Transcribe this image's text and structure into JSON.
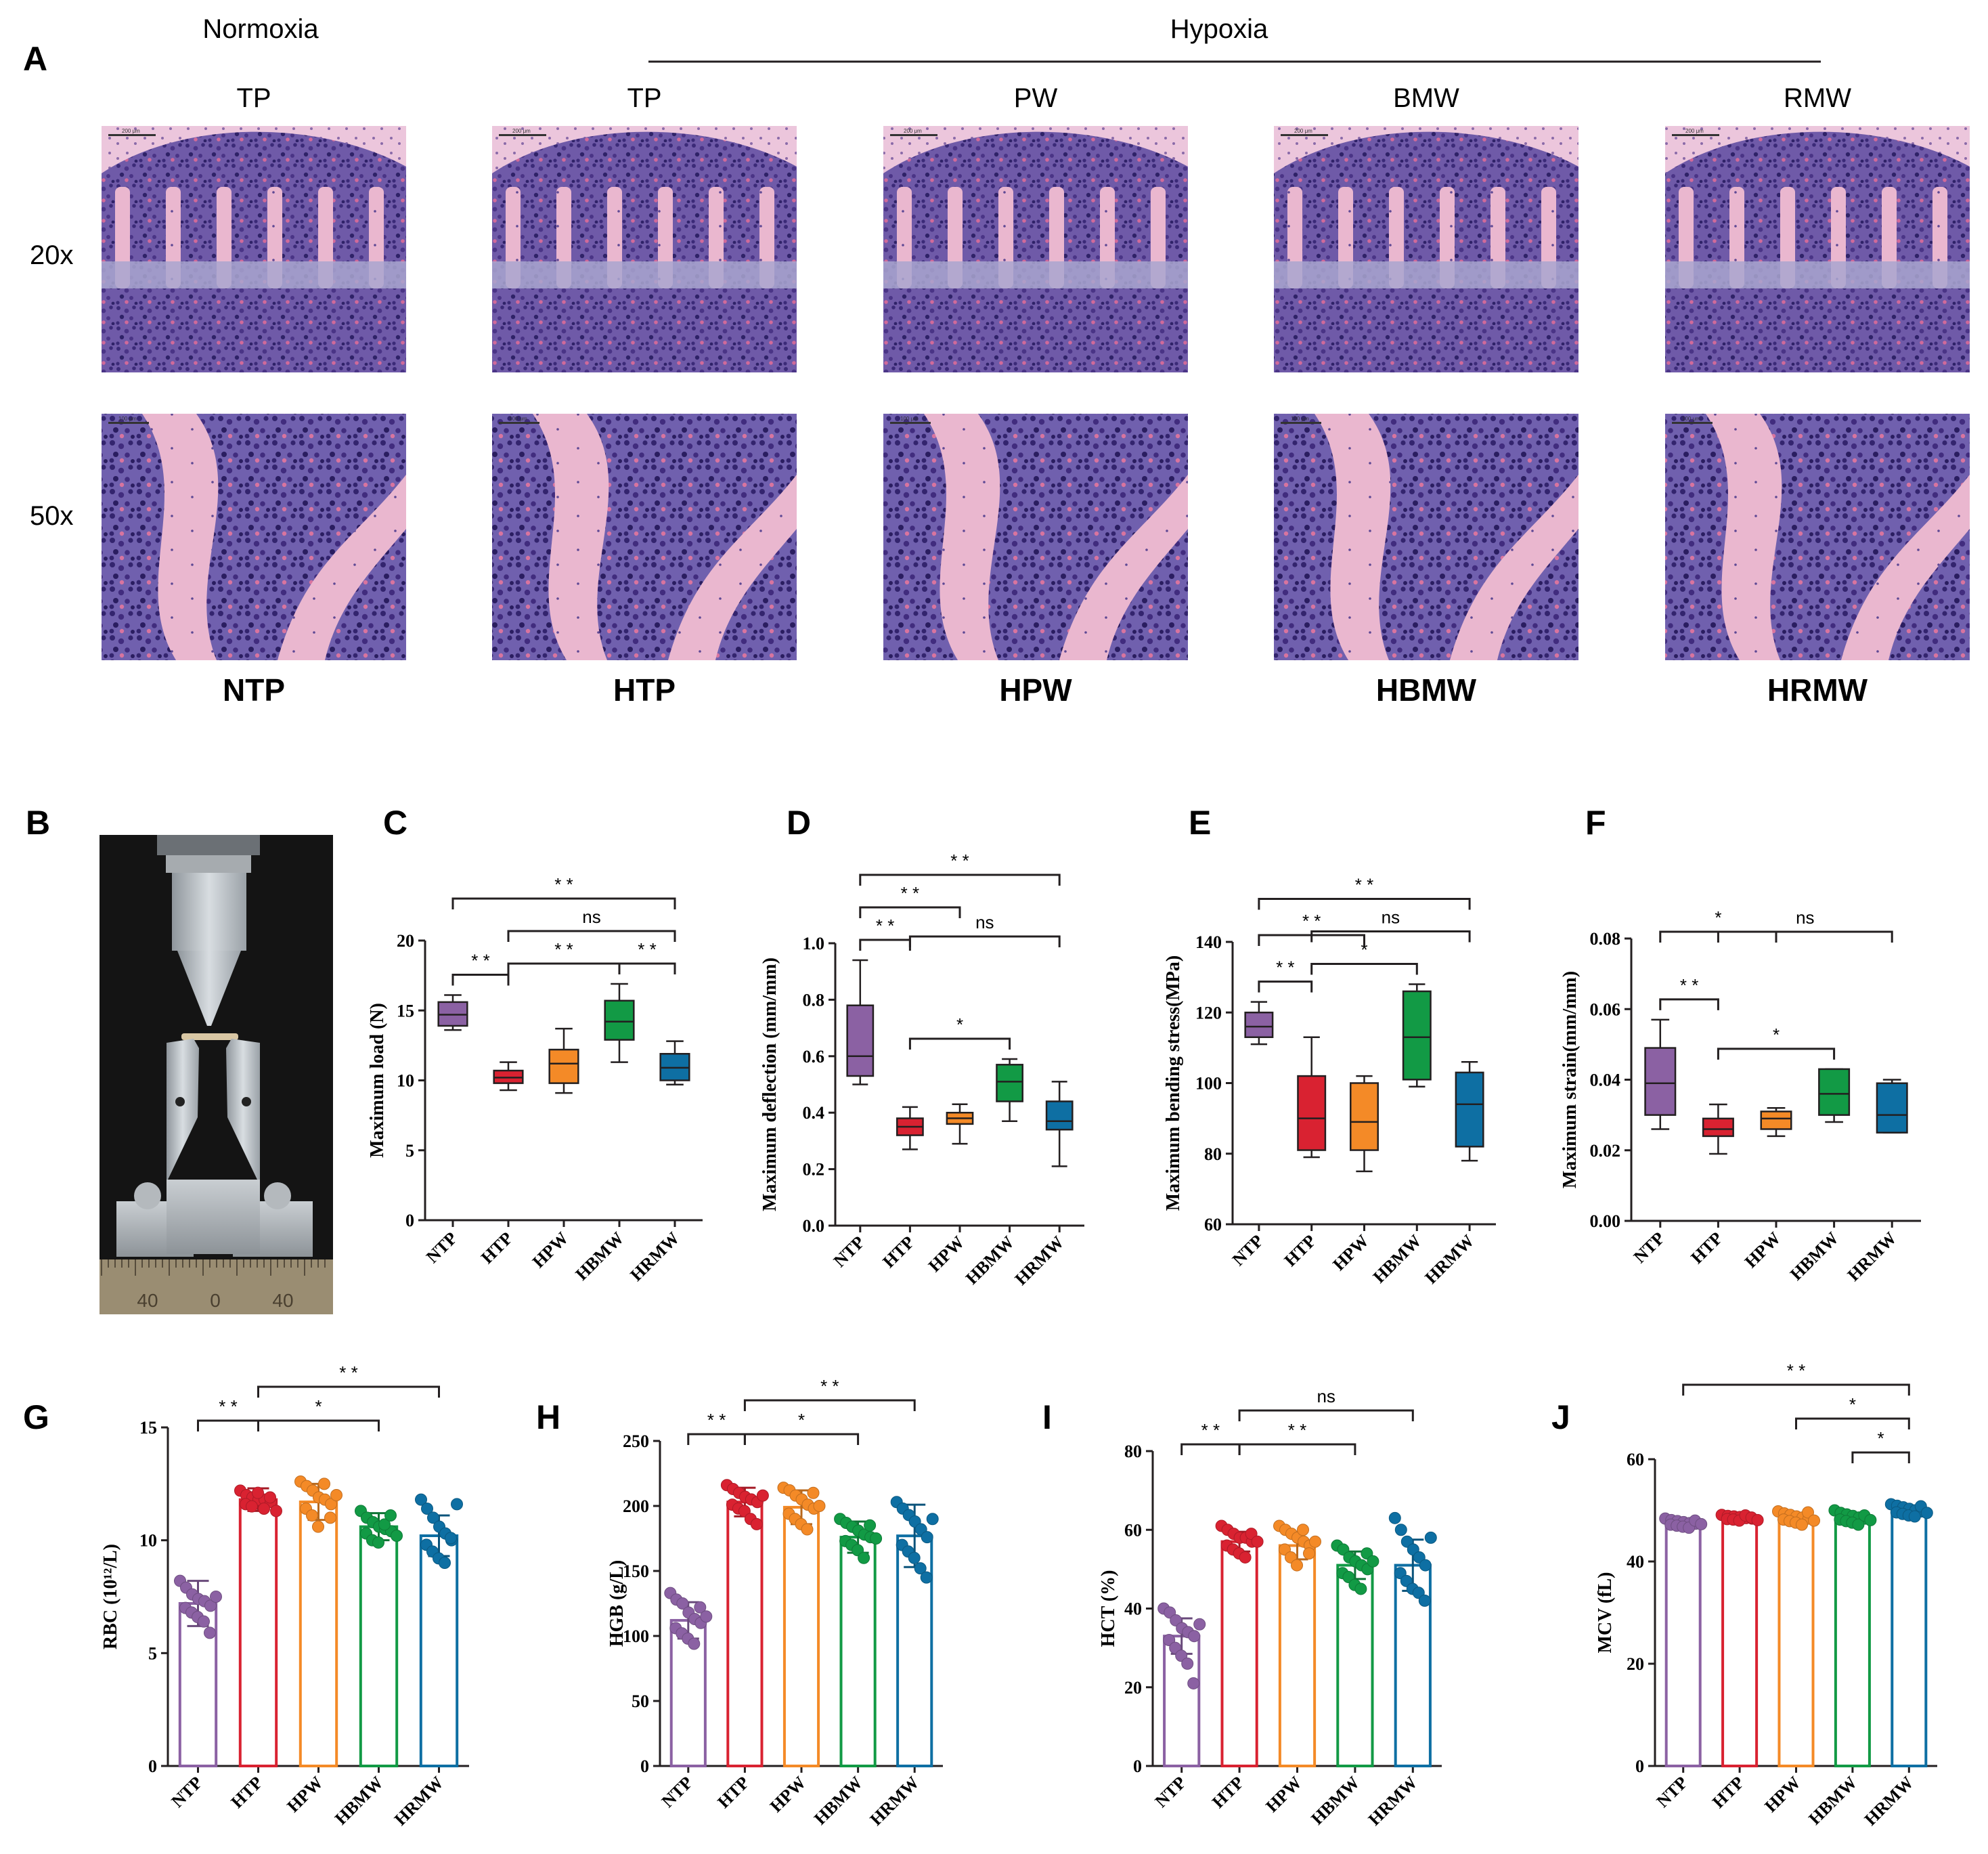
{
  "panel_a": {
    "panel_letter": "A",
    "group_normoxia": "Normoxia",
    "group_hypoxia": "Hypoxia",
    "columns": [
      {
        "treatment": "TP",
        "group": "NTP"
      },
      {
        "treatment": "TP",
        "group": "HTP"
      },
      {
        "treatment": "PW",
        "group": "HPW"
      },
      {
        "treatment": "BMW",
        "group": "HBMW"
      },
      {
        "treatment": "RMW",
        "group": "HRMW"
      }
    ],
    "row_labels": [
      "20x",
      "50x"
    ],
    "scalebar_labels": [
      "200 μm",
      "200 μm",
      "200 μm",
      "200 μm",
      "200 μm",
      "100 μm",
      "100 μm",
      "100 μm",
      "100 μm",
      "100 μm"
    ]
  },
  "panel_b": {
    "panel_letter": "B",
    "ruler_labels": [
      "40",
      "0",
      "40"
    ]
  },
  "colors": {
    "NTP": "#8b61a3",
    "HTP": "#d92231",
    "HPW": "#f48a27",
    "HBMW": "#129a45",
    "HRMW": "#0e6fa3",
    "text": "#231f20"
  },
  "chart_data": [
    {
      "id": "C",
      "type": "box",
      "categories": [
        "NTP",
        "HTP",
        "HPW",
        "HBMW",
        "HRMW"
      ],
      "ylabel": "Maximum load (N)",
      "ylim": [
        0,
        20
      ],
      "yticks": [
        "0",
        "5",
        "10",
        "15",
        "20"
      ],
      "boxes": [
        {
          "min": 13.6,
          "q1": 13.9,
          "median": 14.7,
          "q3": 15.6,
          "max": 16.1
        },
        {
          "min": 9.3,
          "q1": 9.8,
          "median": 10.2,
          "q3": 10.7,
          "max": 11.3
        },
        {
          "min": 9.1,
          "q1": 9.8,
          "median": 11.2,
          "q3": 12.2,
          "max": 13.7
        },
        {
          "min": 11.3,
          "q1": 12.9,
          "median": 14.2,
          "q3": 15.7,
          "max": 16.9
        },
        {
          "min": 9.7,
          "q1": 10.0,
          "median": 10.9,
          "q3": 11.9,
          "max": 12.8
        }
      ],
      "significance": [
        {
          "from": 0,
          "to": 1,
          "label": "* *",
          "level": 0
        },
        {
          "from": 1,
          "to": 3,
          "label": "* *",
          "level": 0
        },
        {
          "from": 3,
          "to": 4,
          "label": "* *",
          "level": 0
        },
        {
          "from": 1,
          "to": 4,
          "label": "ns",
          "level": 1
        },
        {
          "from": 0,
          "to": 4,
          "label": "* *",
          "level": 2
        }
      ]
    },
    {
      "id": "D",
      "type": "box",
      "categories": [
        "NTP",
        "HTP",
        "HPW",
        "HBMW",
        "HRMW"
      ],
      "ylabel": "Maximum deflection (mm/mm)",
      "ylim": [
        0,
        1.0
      ],
      "yticks": [
        "0.0",
        "0.2",
        "0.4",
        "0.6",
        "0.8",
        "1.0"
      ],
      "boxes": [
        {
          "min": 0.5,
          "q1": 0.53,
          "median": 0.6,
          "q3": 0.78,
          "max": 0.94
        },
        {
          "min": 0.27,
          "q1": 0.32,
          "median": 0.35,
          "q3": 0.38,
          "max": 0.42
        },
        {
          "min": 0.29,
          "q1": 0.36,
          "median": 0.38,
          "q3": 0.4,
          "max": 0.43
        },
        {
          "min": 0.37,
          "q1": 0.44,
          "median": 0.51,
          "q3": 0.57,
          "max": 0.59
        },
        {
          "min": 0.21,
          "q1": 0.34,
          "median": 0.37,
          "q3": 0.44,
          "max": 0.51
        }
      ],
      "significance": [
        {
          "from": 0,
          "to": 1,
          "label": "* *",
          "level": 0
        },
        {
          "from": 1,
          "to": 3,
          "label": "*",
          "level": 0
        },
        {
          "from": 1,
          "to": 4,
          "label": "ns",
          "level": 1
        },
        {
          "from": 0,
          "to": 2,
          "label": "* *",
          "level": 1
        },
        {
          "from": 0,
          "to": 4,
          "label": "* *",
          "level": 2
        }
      ]
    },
    {
      "id": "E",
      "type": "box",
      "categories": [
        "NTP",
        "HTP",
        "HPW",
        "HBMW",
        "HRMW"
      ],
      "ylabel": "Maximum bending stress(MPa)",
      "ylim": [
        60,
        140
      ],
      "yticks": [
        "60",
        "80",
        "100",
        "120",
        "140"
      ],
      "boxes": [
        {
          "min": 111,
          "q1": 113,
          "median": 116,
          "q3": 120,
          "max": 123
        },
        {
          "min": 79,
          "q1": 81,
          "median": 90,
          "q3": 102,
          "max": 113
        },
        {
          "min": 75,
          "q1": 81,
          "median": 89,
          "q3": 100,
          "max": 102
        },
        {
          "min": 99,
          "q1": 101,
          "median": 113,
          "q3": 126,
          "max": 128
        },
        {
          "min": 78,
          "q1": 82,
          "median": 94,
          "q3": 103,
          "max": 106
        }
      ],
      "significance": [
        {
          "from": 0,
          "to": 1,
          "label": "* *",
          "level": 0
        },
        {
          "from": 1,
          "to": 3,
          "label": "*",
          "level": 0
        },
        {
          "from": 1,
          "to": 4,
          "label": "ns",
          "level": 1
        },
        {
          "from": 0,
          "to": 2,
          "label": "* *",
          "level": 1
        },
        {
          "from": 0,
          "to": 4,
          "label": "* *",
          "level": 2
        }
      ]
    },
    {
      "id": "F",
      "type": "box",
      "categories": [
        "NTP",
        "HTP",
        "HPW",
        "HBMW",
        "HRMW"
      ],
      "ylabel": "Maximum strain(mm/mm)",
      "ylim": [
        0,
        0.08
      ],
      "yticks": [
        "0.00",
        "0.02",
        "0.04",
        "0.06",
        "0.08"
      ],
      "boxes": [
        {
          "min": 0.026,
          "q1": 0.03,
          "median": 0.039,
          "q3": 0.049,
          "max": 0.057
        },
        {
          "min": 0.019,
          "q1": 0.024,
          "median": 0.026,
          "q3": 0.029,
          "max": 0.033
        },
        {
          "min": 0.024,
          "q1": 0.026,
          "median": 0.029,
          "q3": 0.031,
          "max": 0.032
        },
        {
          "min": 0.028,
          "q1": 0.03,
          "median": 0.036,
          "q3": 0.043,
          "max": 0.043
        },
        {
          "min": 0.025,
          "q1": 0.025,
          "median": 0.03,
          "q3": 0.039,
          "max": 0.04
        }
      ],
      "significance": [
        {
          "from": 0,
          "to": 1,
          "label": "* *",
          "level": 0
        },
        {
          "from": 1,
          "to": 3,
          "label": "*",
          "level": 0
        },
        {
          "from": 1,
          "to": 4,
          "label": "ns",
          "level": 1
        },
        {
          "from": 0,
          "to": 2,
          "label": "*",
          "level": 1
        }
      ]
    },
    {
      "id": "G",
      "type": "bar",
      "categories": [
        "NTP",
        "HTP",
        "HPW",
        "HBMW",
        "HRMW"
      ],
      "ylabel": "RBC (10¹²/L)",
      "ylim": [
        0,
        15
      ],
      "yticks": [
        "0",
        "5",
        "10",
        "15"
      ],
      "means": [
        7.2,
        11.8,
        11.7,
        10.6,
        10.2
      ],
      "sd": [
        1.0,
        0.5,
        0.8,
        0.6,
        0.9
      ],
      "points": [
        [
          8.2,
          7.9,
          7.6,
          7.4,
          7.3,
          7.1,
          7.0,
          6.8,
          6.6,
          6.4,
          5.9,
          7.5
        ],
        [
          12.2,
          12.0,
          11.9,
          11.8,
          11.8,
          11.7,
          11.6,
          11.5,
          12.1,
          11.4,
          11.9,
          11.3
        ],
        [
          12.6,
          12.4,
          12.2,
          11.9,
          11.8,
          11.6,
          11.4,
          11.1,
          10.6,
          12.5,
          11.0,
          12.0
        ],
        [
          11.3,
          11.0,
          10.8,
          10.6,
          10.5,
          10.4,
          10.3,
          10.0,
          9.9,
          10.7,
          11.1,
          10.2
        ],
        [
          11.8,
          11.4,
          11.0,
          10.6,
          10.3,
          10.0,
          9.8,
          9.5,
          9.2,
          9.0,
          10.1,
          11.6
        ]
      ],
      "significance": [
        {
          "from": 0,
          "to": 1,
          "label": "* *",
          "level": 0
        },
        {
          "from": 1,
          "to": 3,
          "label": "*",
          "level": 0
        },
        {
          "from": 1,
          "to": 4,
          "label": "* *",
          "level": 1
        }
      ]
    },
    {
      "id": "H",
      "type": "bar",
      "categories": [
        "NTP",
        "HTP",
        "HPW",
        "HBMW",
        "HRMW"
      ],
      "ylabel": "HGB (g/L)",
      "ylim": [
        0,
        250
      ],
      "yticks": [
        "0",
        "50",
        "100",
        "150",
        "200",
        "250"
      ],
      "means": [
        112,
        203,
        199,
        176,
        177
      ],
      "sd": [
        14,
        11,
        13,
        12,
        24
      ],
      "points": [
        [
          133,
          128,
          125,
          118,
          113,
          110,
          106,
          102,
          98,
          94,
          122,
          115
        ],
        [
          216,
          213,
          210,
          207,
          205,
          203,
          201,
          198,
          196,
          190,
          186,
          208
        ],
        [
          214,
          212,
          208,
          205,
          201,
          198,
          194,
          190,
          186,
          182,
          210,
          200
        ],
        [
          190,
          187,
          184,
          181,
          178,
          176,
          173,
          170,
          166,
          160,
          185,
          175
        ],
        [
          203,
          198,
          193,
          188,
          182,
          176,
          170,
          165,
          160,
          152,
          145,
          190
        ]
      ],
      "significance": [
        {
          "from": 0,
          "to": 1,
          "label": "* *",
          "level": 0
        },
        {
          "from": 1,
          "to": 3,
          "label": "*",
          "level": 0
        },
        {
          "from": 1,
          "to": 4,
          "label": "* *",
          "level": 1
        }
      ]
    },
    {
      "id": "I",
      "type": "bar",
      "categories": [
        "NTP",
        "HTP",
        "HPW",
        "HBMW",
        "HRMW"
      ],
      "ylabel": "HCT (%)",
      "ylim": [
        0,
        80
      ],
      "yticks": [
        "0",
        "20",
        "40",
        "60",
        "80"
      ],
      "means": [
        33,
        57,
        56,
        51,
        51
      ],
      "sd": [
        4.5,
        2.5,
        3.5,
        3.5,
        6.5
      ],
      "points": [
        [
          40,
          39,
          37,
          35,
          34,
          33,
          32,
          30,
          28,
          26,
          21,
          36
        ],
        [
          61,
          60,
          59,
          58,
          58,
          57,
          56,
          55,
          54,
          53,
          59,
          57
        ],
        [
          61,
          60,
          59,
          58,
          57,
          56,
          55,
          53,
          51,
          60,
          54,
          57
        ],
        [
          56,
          55,
          53,
          52,
          51,
          50,
          49,
          48,
          46,
          45,
          54,
          52
        ],
        [
          63,
          60,
          57,
          55,
          53,
          51,
          49,
          47,
          45,
          44,
          42,
          58
        ]
      ],
      "significance": [
        {
          "from": 0,
          "to": 1,
          "label": "* *",
          "level": 0
        },
        {
          "from": 1,
          "to": 3,
          "label": "* *",
          "level": 0
        },
        {
          "from": 1,
          "to": 4,
          "label": "ns",
          "level": 1
        }
      ]
    },
    {
      "id": "J",
      "type": "bar",
      "categories": [
        "NTP",
        "HTP",
        "HPW",
        "HBMW",
        "HRMW"
      ],
      "ylabel": "MCV (fL)",
      "ylim": [
        0,
        60
      ],
      "yticks": [
        "0",
        "20",
        "40",
        "60"
      ],
      "means": [
        47.5,
        48.5,
        48.5,
        48.5,
        49.8
      ],
      "sd": [
        0.8,
        0.5,
        1.0,
        1.0,
        1.0
      ],
      "points": [
        [
          48.4,
          48.1,
          47.9,
          47.7,
          47.5,
          47.4,
          47.2,
          47.0,
          46.8,
          46.6,
          48.0,
          47.3
        ],
        [
          49.1,
          48.9,
          48.8,
          48.7,
          48.5,
          48.4,
          48.3,
          48.2,
          48.0,
          49.0,
          48.6,
          48.1
        ],
        [
          49.8,
          49.4,
          49.1,
          48.8,
          48.6,
          48.4,
          48.2,
          47.9,
          47.6,
          47.2,
          49.6,
          48.0
        ],
        [
          50.0,
          49.5,
          49.2,
          48.9,
          48.6,
          48.4,
          48.2,
          47.9,
          47.6,
          47.2,
          49.0,
          48.1
        ],
        [
          51.2,
          50.9,
          50.6,
          50.3,
          50.0,
          49.8,
          49.6,
          49.3,
          49.0,
          48.8,
          50.8,
          49.5
        ]
      ],
      "significance": [
        {
          "from": 3,
          "to": 4,
          "label": "*",
          "level": 0
        },
        {
          "from": 2,
          "to": 4,
          "label": "*",
          "level": 1
        },
        {
          "from": 0,
          "to": 4,
          "label": "* *",
          "level": 2
        }
      ]
    }
  ]
}
